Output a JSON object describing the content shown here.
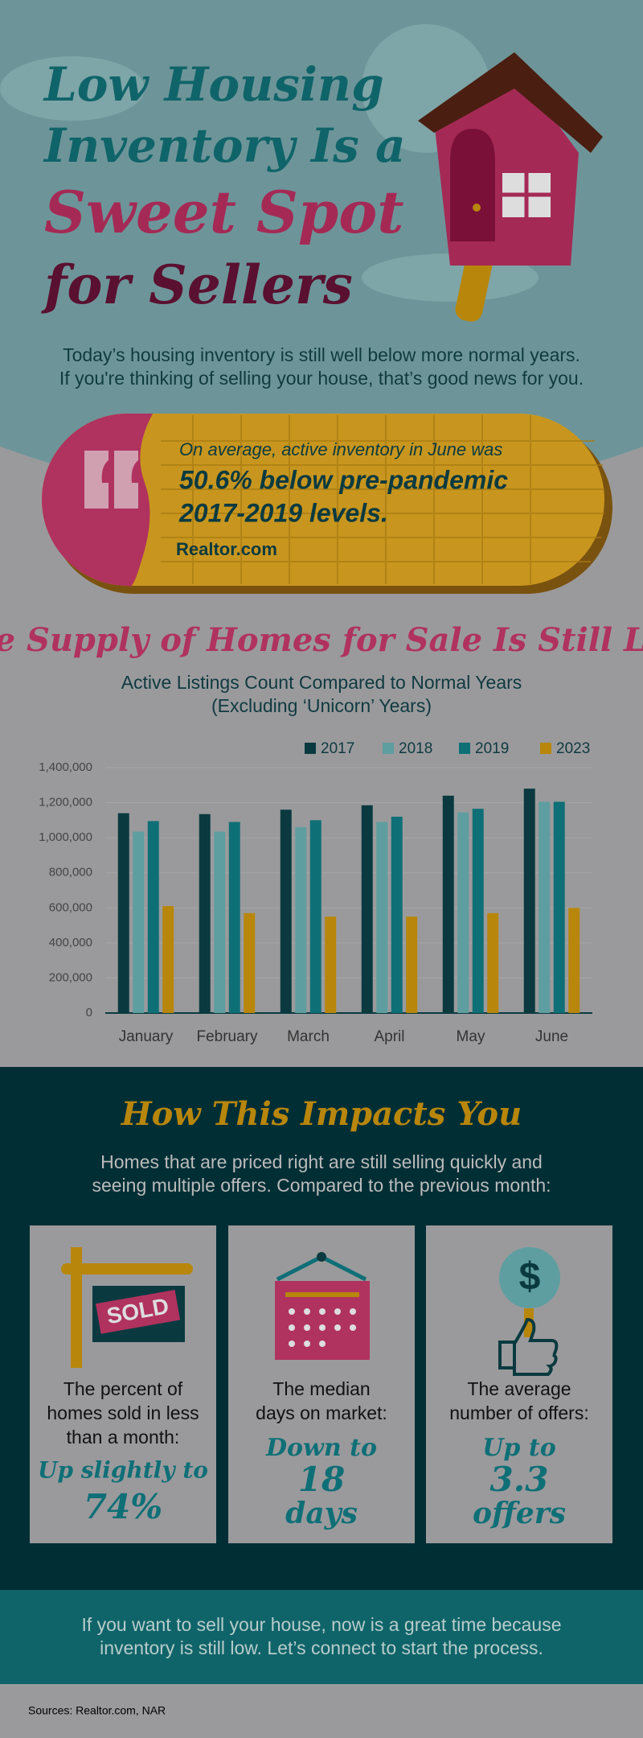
{
  "header": {
    "title_lines": [
      "Low Housing",
      "Inventory Is a",
      "Sweet Spot",
      "for Sellers"
    ],
    "intro": [
      "Today’s housing inventory is still well below more normal years.",
      "If you're thinking of selling your house, that’s good news for you."
    ]
  },
  "quote": {
    "lead": "On average, active inventory in June was",
    "highlight": [
      "50.6% below pre-pandemic",
      "2017-2019 levels."
    ],
    "source": "Realtor.com"
  },
  "chart_data": {
    "type": "bar",
    "title": "The Supply of Homes for Sale Is Still Low",
    "subtitle": [
      "Active Listings Count Compared to Normal Years",
      "(Excluding ‘Unicorn’ Years)"
    ],
    "categories": [
      "January",
      "February",
      "March",
      "April",
      "May",
      "June"
    ],
    "series": [
      {
        "name": "2017",
        "color": "#0a3a40",
        "values": [
          1140000,
          1135000,
          1160000,
          1185000,
          1240000,
          1280000
        ]
      },
      {
        "name": "2018",
        "color": "#5e9ea0",
        "values": [
          1035000,
          1035000,
          1060000,
          1090000,
          1145000,
          1205000
        ]
      },
      {
        "name": "2019",
        "color": "#0f6f77",
        "values": [
          1095000,
          1090000,
          1100000,
          1120000,
          1165000,
          1205000
        ]
      },
      {
        "name": "2023",
        "color": "#b8860b",
        "values": [
          610000,
          570000,
          550000,
          550000,
          570000,
          600000
        ]
      }
    ],
    "ylim": [
      0,
      1400000
    ],
    "yticks": [
      0,
      {
        "value": 200000,
        "label": "200,000"
      },
      {
        "value": 400000,
        "label": "400,000"
      },
      {
        "value": 600000,
        "label": "600,000"
      },
      {
        "value": 800000,
        "label": "800,000"
      },
      {
        "value": 1000000,
        "label": "1,000,000"
      },
      {
        "value": 1200000,
        "label": "1,200,000"
      },
      {
        "value": 1400000,
        "label": "1,400,000"
      }
    ],
    "grid": true,
    "legend": "top-right"
  },
  "impact": {
    "title": "How This Impacts You",
    "intro": [
      "Homes that are priced right are still selling quickly and",
      "seeing multiple offers. Compared to the previous month:"
    ],
    "sold_sign": "SOLD",
    "dollar_sign": "$",
    "cards": [
      {
        "text": [
          "The percent of",
          "homes sold in less",
          "than a month:"
        ],
        "stat": [
          "Up slightly to",
          "74%"
        ]
      },
      {
        "text": [
          "The median",
          "days on market:"
        ],
        "stat": [
          "Down to",
          "18",
          "days"
        ]
      },
      {
        "text": [
          "The average",
          "number of offers:"
        ],
        "stat": [
          "Up to",
          "3.3",
          "offers"
        ]
      }
    ]
  },
  "footer": {
    "text": [
      "If you want to sell your house, now is a great time because",
      "inventory is still low. Let’s connect to start the process."
    ],
    "sources": "Sources: Realtor.com, NAR"
  }
}
